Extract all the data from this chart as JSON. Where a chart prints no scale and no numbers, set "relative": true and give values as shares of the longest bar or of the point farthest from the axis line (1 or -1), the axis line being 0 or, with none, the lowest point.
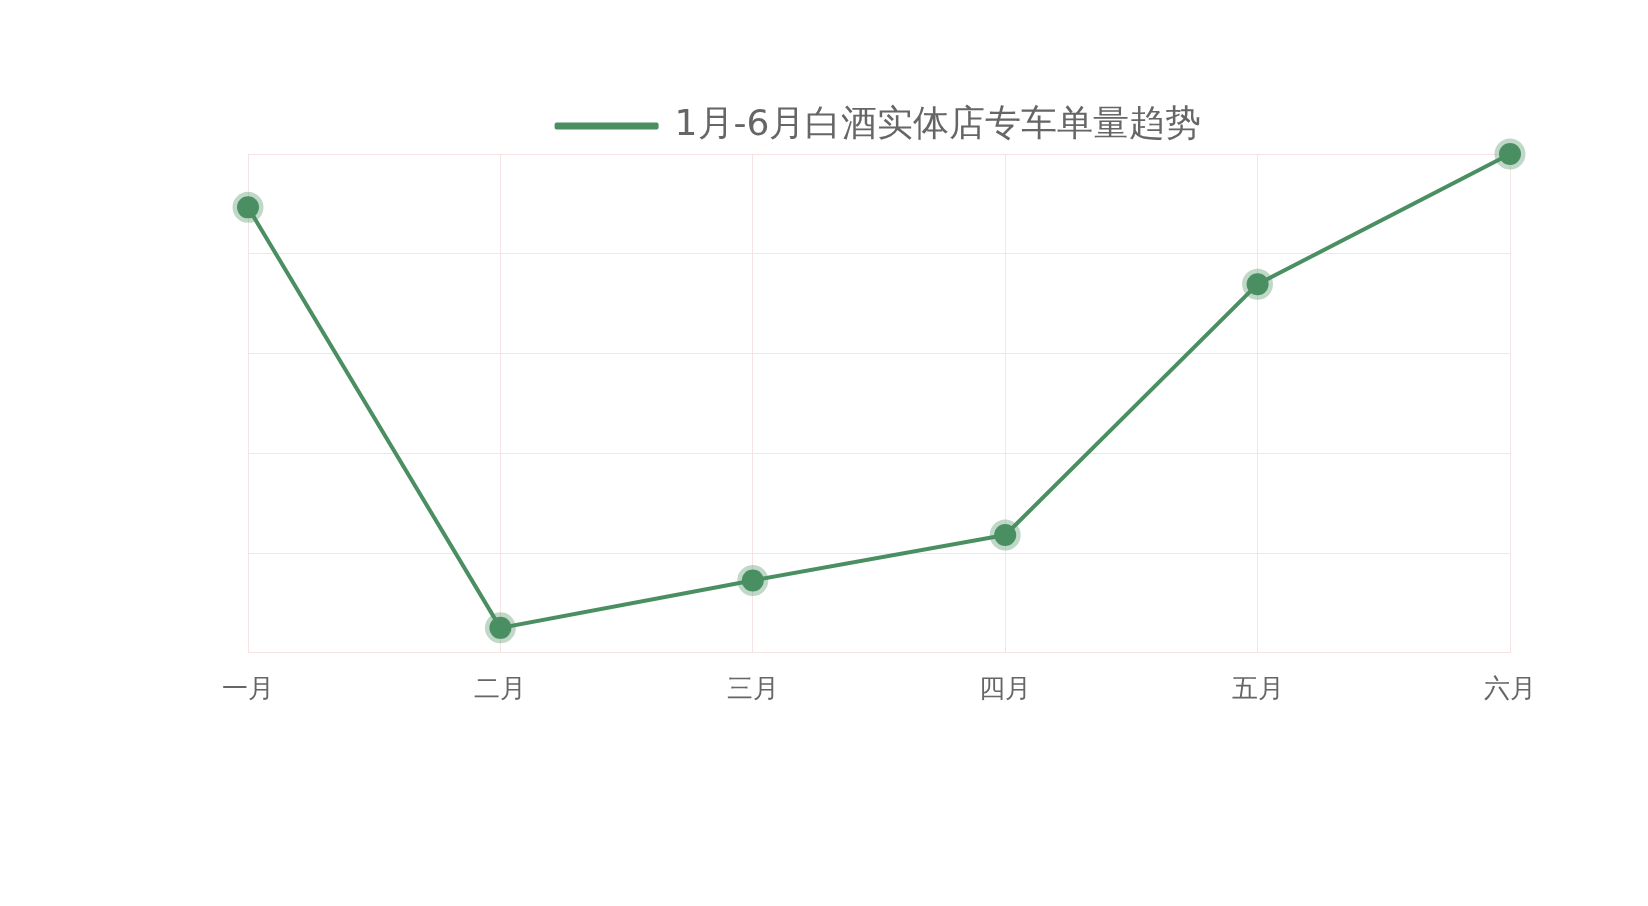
{
  "chart_data": {
    "type": "line",
    "relative": true,
    "categories": [
      "一月",
      "二月",
      "三月",
      "四月",
      "五月",
      "六月"
    ],
    "series": [
      {
        "name": "1月-6月白酒实体店专车单量趋势",
        "color": "#4a8f62",
        "values": [
          0.893,
          0.05,
          0.145,
          0.236,
          0.739,
          1
        ]
      }
    ],
    "grid": true,
    "legend": "top",
    "marker": "circle",
    "line_style": "solid"
  }
}
